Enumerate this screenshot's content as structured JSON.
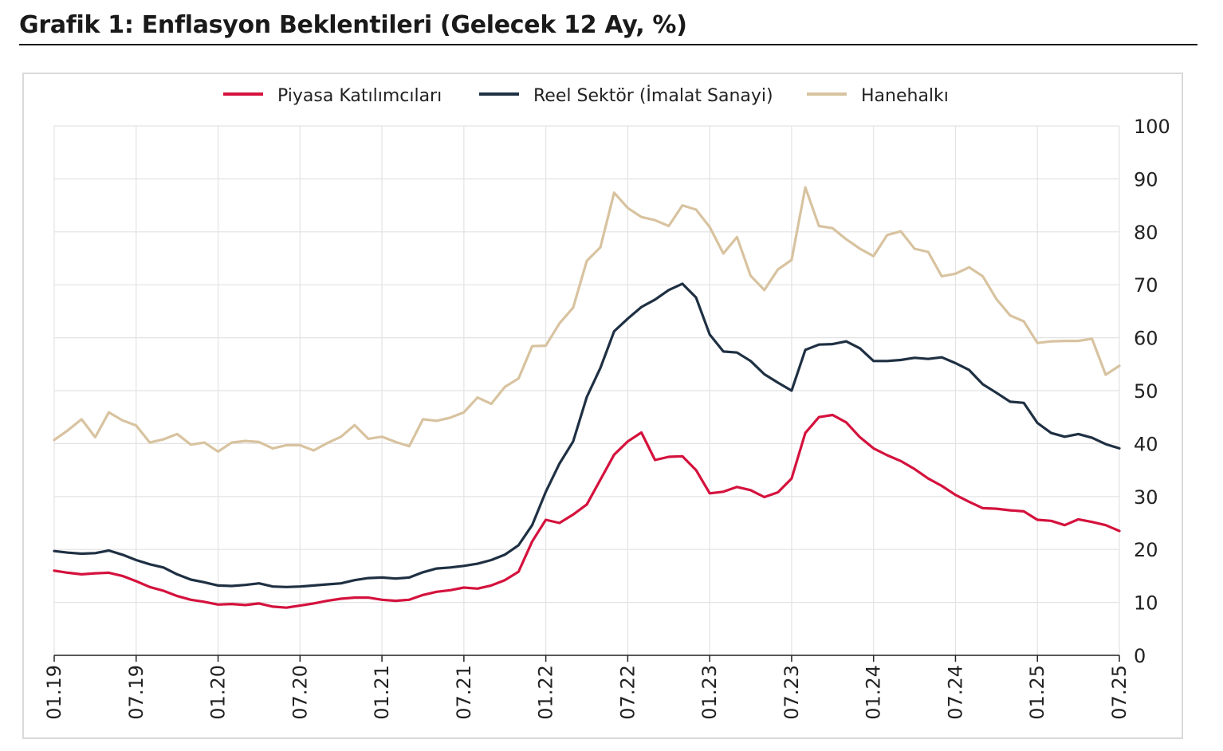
{
  "title": "Grafik 1: Enflasyon Beklentileri (Gelecek 12 Ay, %)",
  "chart_data": {
    "type": "line",
    "title": "Grafik 1: Enflasyon Beklentileri (Gelecek 12 Ay, %)",
    "xlabel": "",
    "ylabel": "",
    "ylim": [
      0,
      100
    ],
    "yticks": [
      0,
      10,
      20,
      30,
      40,
      50,
      60,
      70,
      80,
      90,
      100
    ],
    "xticks": [
      "01.19",
      "07.19",
      "01.20",
      "07.20",
      "01.21",
      "07.21",
      "01.22",
      "07.22",
      "01.23",
      "07.23",
      "01.24",
      "07.24",
      "01.25",
      "07.25"
    ],
    "grid": true,
    "legend_position": "top-center",
    "series": [
      {
        "name": "Piyasa Katılımcıları",
        "color": "#d4123d",
        "values": [
          16.0,
          15.6,
          15.3,
          15.5,
          15.6,
          15.0,
          14.0,
          12.9,
          12.2,
          11.2,
          10.5,
          10.1,
          9.6,
          9.7,
          9.5,
          9.8,
          9.2,
          9.0,
          9.4,
          9.8,
          10.3,
          10.7,
          10.9,
          10.9,
          10.5,
          10.3,
          10.5,
          11.4,
          12.0,
          12.3,
          12.8,
          12.6,
          13.2,
          14.2,
          15.8,
          21.5,
          25.6,
          25.0,
          26.6,
          28.5,
          33.2,
          37.9,
          40.4,
          42.1,
          36.9,
          37.5,
          37.6,
          35.0,
          30.6,
          30.9,
          31.8,
          31.2,
          29.9,
          30.8,
          33.4,
          42.0,
          45.0,
          45.4,
          44.0,
          41.2,
          39.1,
          37.8,
          36.7,
          35.2,
          33.4,
          32.0,
          30.3,
          29.0,
          27.8,
          27.7,
          27.4,
          27.2,
          25.6,
          25.4,
          24.6,
          25.7,
          25.2,
          24.6,
          23.5
        ]
      },
      {
        "name": "Reel Sektör (İmalat Sanayi)",
        "color": "#1f3043",
        "values": [
          19.7,
          19.4,
          19.2,
          19.3,
          19.8,
          19.0,
          18.0,
          17.2,
          16.6,
          15.3,
          14.3,
          13.8,
          13.2,
          13.1,
          13.3,
          13.6,
          13.0,
          12.9,
          13.0,
          13.2,
          13.4,
          13.6,
          14.2,
          14.6,
          14.7,
          14.5,
          14.7,
          15.7,
          16.4,
          16.6,
          16.9,
          17.3,
          18.0,
          19.0,
          20.8,
          24.6,
          30.9,
          36.2,
          40.4,
          48.8,
          54.3,
          61.2,
          63.6,
          65.8,
          67.2,
          69.0,
          70.2,
          67.6,
          60.6,
          57.4,
          57.2,
          55.6,
          53.1,
          51.5,
          50.0,
          57.7,
          58.7,
          58.8,
          59.3,
          58.0,
          55.6,
          55.6,
          55.8,
          56.2,
          56.0,
          56.3,
          55.2,
          53.9,
          51.2,
          49.6,
          47.9,
          47.7,
          43.9,
          42.0,
          41.3,
          41.8,
          41.1,
          39.9,
          39.1
        ]
      },
      {
        "name": "Hanehalkı",
        "color": "#d8c3a0",
        "values": [
          40.7,
          42.5,
          44.6,
          41.2,
          45.9,
          44.4,
          43.4,
          40.2,
          40.8,
          41.8,
          39.8,
          40.2,
          38.5,
          40.2,
          40.5,
          40.3,
          39.1,
          39.7,
          39.7,
          38.7,
          40.1,
          41.3,
          43.5,
          40.9,
          41.3,
          40.3,
          39.5,
          44.6,
          44.3,
          44.9,
          45.9,
          48.7,
          47.5,
          50.7,
          52.3,
          58.4,
          58.5,
          62.7,
          65.7,
          74.5,
          77.1,
          87.4,
          84.5,
          82.8,
          82.2,
          81.1,
          85.0,
          84.2,
          80.9,
          75.9,
          79.0,
          71.7,
          69.0,
          72.9,
          74.7,
          88.4,
          81.1,
          80.7,
          78.6,
          76.8,
          75.4,
          79.4,
          80.1,
          76.8,
          76.2,
          71.6,
          72.1,
          73.3,
          71.6,
          67.3,
          64.2,
          63.1,
          59.0,
          59.3,
          59.4,
          59.4,
          59.8,
          53.0,
          54.7
        ]
      }
    ]
  }
}
